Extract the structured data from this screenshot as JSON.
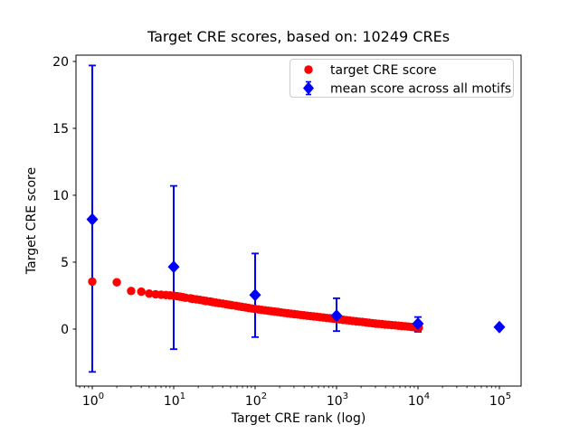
{
  "chart_data": {
    "type": "scatter",
    "title": "Target CRE scores, based on: 10249 CREs",
    "xlabel": "Target CRE rank (log)",
    "ylabel": "Target CRE score",
    "x_scale": "log",
    "grid": false,
    "legend_position": "upper right",
    "xlim_log": [
      -0.2,
      5.2667
    ],
    "ylim": [
      -4.26,
      20.47
    ],
    "x_ticks": {
      "base": 10,
      "exponents": [
        0,
        1,
        2,
        3,
        4,
        5
      ]
    },
    "x_minor_subs": [
      2,
      3,
      4,
      5,
      6,
      7,
      8,
      9
    ],
    "y_ticks": [
      0,
      5,
      10,
      15,
      20
    ],
    "legend": [
      {
        "label": "target CRE score",
        "marker": "circle",
        "color": "#ff0000"
      },
      {
        "label": "mean score across all motifs",
        "marker": "diamond",
        "color": "#0000ff"
      }
    ],
    "series": [
      {
        "name": "target CRE score",
        "marker": "circle",
        "color": "#ff0000",
        "points": [
          [
            1,
            3.55
          ],
          [
            2,
            3.5
          ],
          [
            3,
            2.85
          ],
          [
            4,
            2.8
          ],
          [
            5,
            2.65
          ],
          [
            6,
            2.6
          ],
          [
            7,
            2.57
          ],
          [
            8,
            2.54
          ],
          [
            9,
            2.52
          ],
          [
            10,
            2.5
          ],
          [
            11,
            2.46
          ],
          [
            12,
            2.42
          ],
          [
            13,
            2.38
          ],
          [
            14,
            2.34
          ],
          [
            16,
            2.3
          ],
          [
            17,
            2.26
          ],
          [
            19,
            2.22
          ],
          [
            21,
            2.18
          ],
          [
            23,
            2.14
          ],
          [
            25,
            2.1
          ],
          [
            28,
            2.06
          ],
          [
            30,
            2.02
          ],
          [
            33,
            1.98
          ],
          [
            36,
            1.94
          ],
          [
            40,
            1.9
          ],
          [
            44,
            1.86
          ],
          [
            48,
            1.82
          ],
          [
            52,
            1.78
          ],
          [
            58,
            1.74
          ],
          [
            63,
            1.7
          ],
          [
            69,
            1.66
          ],
          [
            76,
            1.62
          ],
          [
            83,
            1.58
          ],
          [
            91,
            1.54
          ],
          [
            100,
            1.5
          ],
          [
            110,
            1.47
          ],
          [
            120,
            1.44
          ],
          [
            132,
            1.4
          ],
          [
            145,
            1.37
          ],
          [
            158,
            1.34
          ],
          [
            174,
            1.31
          ],
          [
            191,
            1.28
          ],
          [
            209,
            1.24
          ],
          [
            229,
            1.21
          ],
          [
            251,
            1.18
          ],
          [
            275,
            1.15
          ],
          [
            302,
            1.12
          ],
          [
            331,
            1.09
          ],
          [
            363,
            1.06
          ],
          [
            398,
            1.03
          ],
          [
            437,
            1.0
          ],
          [
            479,
            0.97
          ],
          [
            525,
            0.95
          ],
          [
            575,
            0.92
          ],
          [
            631,
            0.89
          ],
          [
            692,
            0.86
          ],
          [
            759,
            0.83
          ],
          [
            832,
            0.81
          ],
          [
            912,
            0.78
          ],
          [
            1000,
            0.75
          ],
          [
            1096,
            0.72
          ],
          [
            1202,
            0.69
          ],
          [
            1318,
            0.67
          ],
          [
            1445,
            0.64
          ],
          [
            1585,
            0.61
          ],
          [
            1738,
            0.58
          ],
          [
            1905,
            0.55
          ],
          [
            2089,
            0.53
          ],
          [
            2291,
            0.5
          ],
          [
            2512,
            0.47
          ],
          [
            2754,
            0.44
          ],
          [
            3020,
            0.41
          ],
          [
            3311,
            0.39
          ],
          [
            3631,
            0.37
          ],
          [
            3981,
            0.34
          ],
          [
            4365,
            0.32
          ],
          [
            4786,
            0.3
          ],
          [
            5248,
            0.28
          ],
          [
            5754,
            0.25
          ],
          [
            6310,
            0.23
          ],
          [
            6918,
            0.21
          ],
          [
            7586,
            0.19
          ],
          [
            8318,
            0.16
          ],
          [
            9120,
            0.14
          ],
          [
            10000,
            0.12
          ],
          [
            10249,
            0.1
          ]
        ]
      },
      {
        "name": "mean score across all motifs",
        "marker": "diamond",
        "color": "#0000ff",
        "has_error_bars": true,
        "points": [
          {
            "rank": 1,
            "mean": 8.2,
            "lo": -3.2,
            "hi": 19.7
          },
          {
            "rank": 10,
            "mean": 4.65,
            "lo": -1.5,
            "hi": 10.7
          },
          {
            "rank": 100,
            "mean": 2.55,
            "lo": -0.6,
            "hi": 5.65
          },
          {
            "rank": 1000,
            "mean": 1.0,
            "lo": -0.15,
            "hi": 2.3
          },
          {
            "rank": 10000,
            "mean": 0.4,
            "lo": -0.2,
            "hi": 0.9
          },
          {
            "rank": 100000,
            "mean": 0.15,
            "lo": 0.05,
            "hi": 0.25
          }
        ]
      }
    ]
  }
}
